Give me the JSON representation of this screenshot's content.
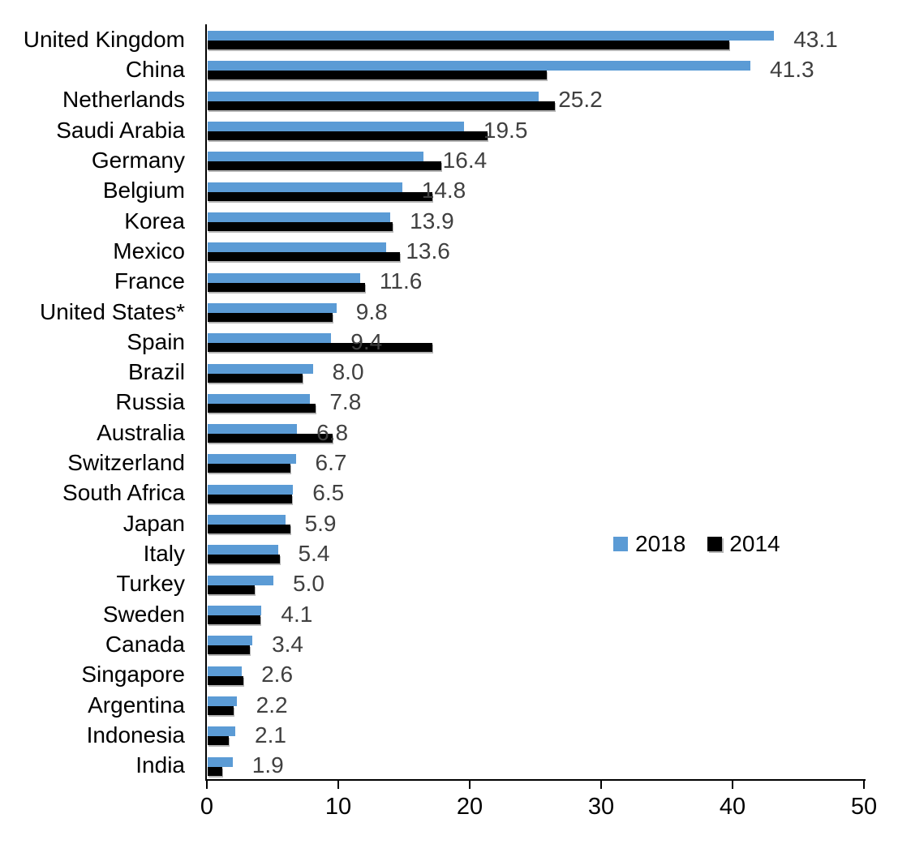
{
  "chart_data": {
    "type": "bar",
    "orientation": "horizontal",
    "title": "",
    "xlabel": "",
    "ylabel": "",
    "xlim": [
      0,
      50
    ],
    "x_ticks": [
      "0",
      "10",
      "20",
      "30",
      "40",
      "50"
    ],
    "grid": false,
    "legend_position": "middle-right",
    "categories": [
      "United Kingdom",
      "China",
      "Netherlands",
      "Saudi Arabia",
      "Germany",
      "Belgium",
      "Korea",
      "Mexico",
      "France",
      "United States*",
      "Spain",
      "Brazil",
      "Russia",
      "Australia",
      "Switzerland",
      "South Africa",
      "Japan",
      "Italy",
      "Turkey",
      "Sweden",
      "Canada",
      "Singapore",
      "Argentina",
      "Indonesia",
      "India"
    ],
    "series": [
      {
        "name": "2018",
        "color": "#5B9BD5",
        "values": [
          43.1,
          41.3,
          25.2,
          19.5,
          16.4,
          14.8,
          13.9,
          13.6,
          11.6,
          9.8,
          9.4,
          8.0,
          7.8,
          6.8,
          6.7,
          6.5,
          5.9,
          5.4,
          5.0,
          4.1,
          3.4,
          2.6,
          2.2,
          2.1,
          1.9
        ]
      },
      {
        "name": "2014",
        "color": "#000000",
        "values": [
          39.7,
          25.8,
          26.4,
          21.3,
          17.8,
          17.1,
          14.1,
          14.6,
          12.0,
          9.5,
          17.1,
          7.2,
          8.2,
          9.5,
          6.3,
          6.4,
          6.3,
          5.5,
          3.6,
          4.0,
          3.2,
          2.7,
          2.0,
          1.6,
          1.1
        ]
      }
    ],
    "data_labels": [
      "43.1",
      "41.3",
      "25.2",
      "19.5",
      "16.4",
      "14.8",
      "13.9",
      "13.6",
      "11.6",
      "9.8",
      "9.4",
      "8.0",
      "7.8",
      "6.8",
      "6.7",
      "6.5",
      "5.9",
      "5.4",
      "5.0",
      "4.1",
      "3.4",
      "2.6",
      "2.2",
      "2.1",
      "1.9"
    ],
    "data_label_color": "#404040"
  },
  "legend": {
    "entries": [
      {
        "label": "2018",
        "color": "#5B9BD5"
      },
      {
        "label": "2014",
        "color": "#000000"
      }
    ]
  }
}
